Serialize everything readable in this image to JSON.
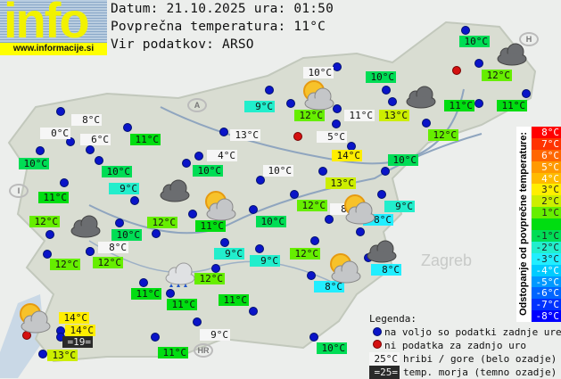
{
  "header": {
    "logo_text": "info",
    "logo_url": "www.informacije.si",
    "date_line": "Datum: 21.10.2025 ura: 01:50",
    "avg_line": "Povprečna temperatura: 11°C",
    "source_line": "Vir podatkov: ARSO"
  },
  "map_labels": {
    "zagreb": "Zagreb",
    "country_a": "A",
    "country_h": "H",
    "country_i": "I",
    "country_hr": "HR"
  },
  "stations": [
    {
      "temp": "10°C",
      "bg": "hill"
    },
    {
      "temp": "10°C",
      "bg": -1
    },
    {
      "temp": "10°C",
      "bg": -1
    },
    {
      "temp": "12°C",
      "bg": 1
    },
    {
      "temp": "9°C",
      "bg": -2
    },
    {
      "temp": "12°C",
      "bg": 1
    },
    {
      "temp": "11°C",
      "bg": "hill"
    },
    {
      "temp": "13°C",
      "bg": 2
    },
    {
      "temp": "11°C",
      "bg": 0
    },
    {
      "temp": "11°C",
      "bg": 0
    },
    {
      "temp": "12°C",
      "bg": 1
    },
    {
      "temp": "8°C",
      "bg": "hill"
    },
    {
      "temp": "0°C",
      "bg": "hill"
    },
    {
      "temp": "6°C",
      "bg": "hill"
    },
    {
      "temp": "11°C",
      "bg": 0
    },
    {
      "temp": "13°C",
      "bg": "hill"
    },
    {
      "temp": "5°C",
      "bg": "hill"
    },
    {
      "temp": "14°C",
      "bg": 3
    },
    {
      "temp": "10°C",
      "bg": -1
    },
    {
      "temp": "10°C",
      "bg": -1
    },
    {
      "temp": "4°C",
      "bg": "hill"
    },
    {
      "temp": "10°C",
      "bg": -1
    },
    {
      "temp": "10°C",
      "bg": "hill"
    },
    {
      "temp": "10°C",
      "bg": -1
    },
    {
      "temp": "13°C",
      "bg": 2
    },
    {
      "temp": "9°C",
      "bg": -2
    },
    {
      "temp": "11°C",
      "bg": 0
    },
    {
      "temp": "12°C",
      "bg": 1
    },
    {
      "temp": "12°C",
      "bg": 1
    },
    {
      "temp": "11°C",
      "bg": 0
    },
    {
      "temp": "10°C",
      "bg": -1
    },
    {
      "temp": "10°C",
      "bg": -1
    },
    {
      "temp": "12°C",
      "bg": 1
    },
    {
      "temp": "8°C",
      "bg": "hill"
    },
    {
      "temp": "9°C",
      "bg": -2
    },
    {
      "temp": "8°C",
      "bg": -3
    },
    {
      "temp": "8°C",
      "bg": "hill"
    },
    {
      "temp": "12°C",
      "bg": 1
    },
    {
      "temp": "12°C",
      "bg": 1
    },
    {
      "temp": "9°C",
      "bg": -2
    },
    {
      "temp": "9°C",
      "bg": -2
    },
    {
      "temp": "12°C",
      "bg": 1
    },
    {
      "temp": "8°C",
      "bg": -3
    },
    {
      "temp": "8°C",
      "bg": -3
    },
    {
      "temp": "12°C",
      "bg": 1
    },
    {
      "temp": "11°C",
      "bg": 0
    },
    {
      "temp": "11°C",
      "bg": 0
    },
    {
      "temp": "11°C",
      "bg": 0
    },
    {
      "temp": "14°C",
      "bg": 3
    },
    {
      "temp": "14°C",
      "bg": 3
    },
    {
      "temp": "=19=",
      "bg": "sea"
    },
    {
      "temp": "13°C",
      "bg": 2
    },
    {
      "temp": "11°C",
      "bg": 0
    },
    {
      "temp": "9°C",
      "bg": "hill"
    },
    {
      "temp": "10°C",
      "bg": -1
    }
  ],
  "colors": {
    "hill": "#f6f6f6",
    "sea": "#2a2a2a",
    "station_ok": "#0a14c8",
    "station_missing": "#d41010",
    "scale": {
      "8": "#ff0000",
      "7": "#ff3300",
      "6": "#ff6600",
      "5": "#ff9900",
      "4": "#ffbb00",
      "3": "#ffee00",
      "2": "#ccee00",
      "1": "#66ee00",
      "0": "#00dd11",
      "-1": "#00dd55",
      "-2": "#22eecc",
      "-3": "#22eeff",
      "-4": "#00ccff",
      "-5": "#0099ff",
      "-6": "#0066ff",
      "-7": "#0033ff",
      "-8": "#0000ff"
    }
  },
  "scale": {
    "title": "Odstopanje od povprečne temperature:",
    "rows": [
      {
        "v": 8,
        "label": "8°C"
      },
      {
        "v": 7,
        "label": "7°C"
      },
      {
        "v": 6,
        "label": "6°C"
      },
      {
        "v": 5,
        "label": "5°C"
      },
      {
        "v": 4,
        "label": "4°C"
      },
      {
        "v": 3,
        "label": "3°C"
      },
      {
        "v": 2,
        "label": "2°C"
      },
      {
        "v": 1,
        "label": "1°C"
      },
      {
        "v": 0,
        "label": ""
      },
      {
        "v": -1,
        "label": "-1°C"
      },
      {
        "v": -2,
        "label": "-2°C"
      },
      {
        "v": -3,
        "label": "-3°C"
      },
      {
        "v": -4,
        "label": "-4°C"
      },
      {
        "v": -5,
        "label": "-5°C"
      },
      {
        "v": -6,
        "label": "-6°C"
      },
      {
        "v": -7,
        "label": "-7°C"
      },
      {
        "v": -8,
        "label": "-8°C"
      }
    ]
  },
  "legend": {
    "title": "Legenda:",
    "ok": "na voljo so podatki zadnje ure",
    "missing": "ni podatka za zadnjo uro",
    "hill_sample": "25°C",
    "hill_text": "hribi / gore (belo ozadje)",
    "sea_sample": "=25=",
    "sea_text": "temp. morja (temno ozadje)"
  },
  "weather_icons": [
    "partly-cloudy",
    "partly-cloudy",
    "partly-cloudy",
    "partly-cloudy",
    "partly-cloudy",
    "cloudy",
    "cloudy",
    "cloudy",
    "cloudy",
    "cloudy",
    "rain"
  ]
}
